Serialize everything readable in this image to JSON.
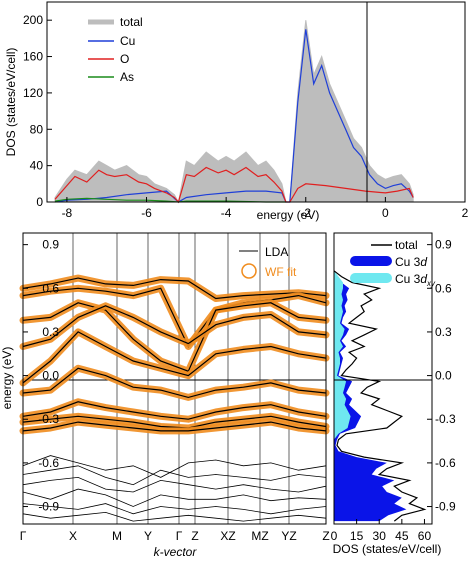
{
  "chart_data": [
    {
      "type": "area",
      "panel": "total DOS",
      "xlabel": "energy (eV)",
      "ylabel": "DOS (states/eV/cell)",
      "xlim": [
        -8.5,
        2
      ],
      "ylim": [
        0,
        220
      ],
      "x_ticks": [
        "-8",
        "-6",
        "-4",
        "-2",
        "0",
        "2"
      ],
      "y_ticks": [
        "0",
        "40",
        "80",
        "120",
        "160",
        "200"
      ],
      "fermi_level": 0,
      "legend_placement": "top-left",
      "series": [
        {
          "name": "total",
          "color": "#bdbdbd",
          "x": [
            -8.3,
            -8.0,
            -7.8,
            -7.5,
            -7.2,
            -7.0,
            -6.8,
            -6.5,
            -6.2,
            -6.0,
            -5.8,
            -5.5,
            -5.3,
            -5.2,
            -5.0,
            -4.8,
            -4.5,
            -4.2,
            -4.0,
            -3.8,
            -3.5,
            -3.2,
            -3.0,
            -2.8,
            -2.6,
            -2.5,
            -2.4,
            -2.2,
            -2.0,
            -1.8,
            -1.6,
            -1.4,
            -1.2,
            -1.0,
            -0.8,
            -0.6,
            -0.4,
            -0.2,
            0.0,
            0.2,
            0.4,
            0.6,
            0.7
          ],
          "y": [
            5,
            25,
            35,
            30,
            45,
            40,
            35,
            40,
            30,
            28,
            20,
            15,
            8,
            0,
            45,
            40,
            55,
            45,
            50,
            45,
            55,
            40,
            45,
            35,
            20,
            0,
            0,
            120,
            200,
            140,
            160,
            130,
            110,
            90,
            70,
            60,
            40,
            30,
            25,
            28,
            30,
            20,
            8
          ]
        },
        {
          "name": "Cu",
          "color": "#1f3fd8",
          "x": [
            -8.3,
            -8.0,
            -7.5,
            -7.0,
            -6.5,
            -6.0,
            -5.5,
            -5.2,
            -5.0,
            -4.5,
            -4.0,
            -3.5,
            -3.0,
            -2.6,
            -2.5,
            -2.4,
            -2.2,
            -2.0,
            -1.8,
            -1.6,
            -1.4,
            -1.2,
            -1.0,
            -0.8,
            -0.6,
            -0.4,
            -0.2,
            0.0,
            0.2,
            0.4,
            0.6,
            0.7
          ],
          "y": [
            0,
            2,
            3,
            5,
            8,
            10,
            12,
            0,
            5,
            8,
            10,
            12,
            12,
            10,
            0,
            0,
            110,
            190,
            130,
            150,
            120,
            100,
            80,
            60,
            50,
            30,
            20,
            15,
            18,
            20,
            12,
            5
          ]
        },
        {
          "name": "O",
          "color": "#e02020",
          "x": [
            -8.3,
            -8.0,
            -7.8,
            -7.5,
            -7.2,
            -7.0,
            -6.8,
            -6.5,
            -6.2,
            -6.0,
            -5.8,
            -5.5,
            -5.3,
            -5.2,
            -5.0,
            -4.8,
            -4.5,
            -4.2,
            -4.0,
            -3.8,
            -3.5,
            -3.2,
            -3.0,
            -2.8,
            -2.6,
            -2.5,
            -2.4,
            -2.2,
            -2.0,
            -1.5,
            -1.0,
            -0.5,
            0.0,
            0.3,
            0.6,
            0.7
          ],
          "y": [
            3,
            18,
            28,
            22,
            35,
            30,
            28,
            30,
            22,
            20,
            15,
            10,
            5,
            0,
            30,
            28,
            38,
            32,
            35,
            30,
            38,
            28,
            30,
            22,
            12,
            0,
            0,
            15,
            20,
            18,
            15,
            12,
            10,
            12,
            15,
            5
          ]
        },
        {
          "name": "As",
          "color": "#1a8c1a",
          "x": [
            -8.3,
            -8.0,
            -7.5,
            -7.0,
            -6.5,
            -6.0,
            -5.5,
            -5.2,
            -5.0,
            -4.0,
            -3.0,
            -2.5
          ],
          "y": [
            1,
            3,
            4,
            3,
            2,
            2,
            1,
            0,
            1,
            1,
            0,
            0
          ]
        }
      ]
    },
    {
      "type": "line",
      "panel": "band structure",
      "xlabel": "k-vector",
      "ylabel": "energy (eV)",
      "ylim": [
        -1.02,
        0.98
      ],
      "k_labels": [
        "Γ",
        "X",
        "M",
        "Y",
        "Γ",
        "Z",
        "XZ",
        "MZ",
        "YZ",
        "Z"
      ],
      "y_ticks": [
        "0.9",
        "0.6",
        "0.3",
        "0.0",
        "-0.3",
        "-0.6",
        "-0.9"
      ],
      "fermi_level": 0,
      "legend_placement": "top-right",
      "series": [
        {
          "name": "LDA",
          "color": "#000000",
          "style": "line"
        },
        {
          "name": "WF fit",
          "color": "#f08c1e",
          "style": "open circles"
        }
      ],
      "bands": [
        [
          0.6,
          0.63,
          0.67,
          0.63,
          0.62,
          0.66,
          0.65,
          0.53,
          0.55,
          0.56,
          0.57,
          0.55
        ],
        [
          0.55,
          0.58,
          0.6,
          0.58,
          0.55,
          0.6,
          0.2,
          0.45,
          0.5,
          0.52,
          0.55,
          0.5
        ],
        [
          0.38,
          0.4,
          0.5,
          0.45,
          0.25,
          0.1,
          0.03,
          0.45,
          0.48,
          0.5,
          0.4,
          0.38
        ],
        [
          0.2,
          0.25,
          0.4,
          0.48,
          0.4,
          0.3,
          0.22,
          0.35,
          0.4,
          0.42,
          0.3,
          0.28
        ],
        [
          -0.05,
          0.1,
          0.3,
          0.2,
          0.1,
          0.05,
          0.0,
          0.15,
          0.18,
          0.2,
          0.15,
          0.12
        ],
        [
          -0.12,
          -0.1,
          0.05,
          0.0,
          -0.08,
          -0.1,
          -0.15,
          -0.1,
          -0.08,
          -0.05,
          -0.1,
          -0.12
        ],
        [
          -0.28,
          -0.25,
          -0.18,
          -0.22,
          -0.25,
          -0.28,
          -0.3,
          -0.25,
          -0.22,
          -0.2,
          -0.25,
          -0.28
        ],
        [
          -0.32,
          -0.3,
          -0.28,
          -0.3,
          -0.32,
          -0.35,
          -0.36,
          -0.32,
          -0.3,
          -0.28,
          -0.32,
          -0.35
        ],
        [
          -0.38,
          -0.36,
          -0.32,
          -0.34,
          -0.36,
          -0.38,
          -0.38,
          -0.36,
          -0.34,
          -0.32,
          -0.36,
          -0.38
        ]
      ],
      "lower_bands": [
        [
          -0.62,
          -0.55,
          -0.6,
          -0.65,
          -0.62,
          -0.7,
          -0.6,
          -0.58,
          -0.62,
          -0.6,
          -0.65,
          -0.62
        ],
        [
          -0.68,
          -0.65,
          -0.62,
          -0.7,
          -0.75,
          -0.65,
          -0.7,
          -0.68,
          -0.7,
          -0.72,
          -0.68,
          -0.7
        ],
        [
          -0.75,
          -0.72,
          -0.7,
          -0.78,
          -0.8,
          -0.72,
          -0.75,
          -0.78,
          -0.75,
          -0.78,
          -0.8,
          -0.76
        ],
        [
          -0.8,
          -0.85,
          -0.78,
          -0.82,
          -0.9,
          -0.82,
          -0.85,
          -0.85,
          -0.82,
          -0.86,
          -0.84,
          -0.85
        ],
        [
          -0.88,
          -0.9,
          -0.92,
          -0.88,
          -0.95,
          -0.9,
          -0.92,
          -0.9,
          -0.92,
          -0.95,
          -0.92,
          -0.9
        ],
        [
          -0.95,
          -0.98,
          -0.96,
          -0.94,
          -1.0,
          -0.98,
          -0.96,
          -0.98,
          -1.0,
          -0.98,
          -0.96,
          -0.98
        ]
      ]
    },
    {
      "type": "area",
      "panel": "projected DOS",
      "xlabel": "DOS (states/eV/cell)",
      "xlim": [
        0,
        65
      ],
      "ylim": [
        -1.02,
        0.98
      ],
      "x_ticks": [
        "0",
        "15",
        "30",
        "45",
        "60"
      ],
      "y_ticks": [
        "0.9",
        "0.6",
        "0.3",
        "0.0",
        "-0.3",
        "-0.6",
        "-0.9"
      ],
      "legend_placement": "top-right",
      "series": [
        {
          "name": "total",
          "color": "#000000",
          "style": "line",
          "e": [
            0.72,
            0.68,
            0.64,
            0.6,
            0.56,
            0.52,
            0.48,
            0.44,
            0.4,
            0.36,
            0.32,
            0.28,
            0.24,
            0.2,
            0.16,
            0.12,
            0.08,
            0.04,
            0.0,
            -0.04,
            -0.08,
            -0.12,
            -0.16,
            -0.2,
            -0.24,
            -0.28,
            -0.32,
            -0.36,
            -0.4,
            -0.44,
            -0.48,
            -0.52,
            -0.56,
            -0.6,
            -0.64,
            -0.68,
            -0.72,
            -0.76,
            -0.8,
            -0.84,
            -0.88,
            -0.92,
            -0.96,
            -1.0
          ],
          "v": [
            0,
            5,
            12,
            30,
            20,
            25,
            18,
            20,
            15,
            10,
            28,
            20,
            12,
            20,
            10,
            15,
            12,
            8,
            5,
            30,
            22,
            18,
            30,
            25,
            35,
            45,
            40,
            35,
            8,
            3,
            2,
            5,
            20,
            45,
            35,
            30,
            50,
            40,
            45,
            55,
            50,
            60,
            45,
            40
          ]
        },
        {
          "name": "Cu 3d",
          "color": "#0a14e8",
          "style": "filled",
          "e": [
            0.72,
            0.68,
            0.64,
            0.6,
            0.56,
            0.52,
            0.48,
            0.44,
            0.4,
            0.36,
            0.32,
            0.28,
            0.24,
            0.2,
            0.16,
            0.12,
            0.08,
            0.04,
            0.0,
            -0.04,
            -0.08,
            -0.12,
            -0.16,
            -0.2,
            -0.24,
            -0.28,
            -0.32,
            -0.36,
            -0.4,
            -0.44,
            -0.48,
            -0.52,
            -0.56,
            -0.6,
            -0.64,
            -0.68,
            -0.72,
            -0.76,
            -0.8,
            -0.84,
            -0.88,
            -0.92,
            -0.96,
            -1.0
          ],
          "v": [
            0,
            2,
            5,
            10,
            8,
            9,
            7,
            8,
            6,
            5,
            10,
            8,
            5,
            8,
            4,
            6,
            5,
            4,
            3,
            12,
            10,
            8,
            12,
            10,
            14,
            18,
            16,
            14,
            4,
            2,
            1,
            3,
            15,
            35,
            28,
            25,
            40,
            32,
            35,
            45,
            40,
            48,
            36,
            30
          ]
        },
        {
          "name": "Cu 3dxy",
          "color": "#6fe8f0",
          "style": "filled",
          "e": [
            0.72,
            0.68,
            0.64,
            0.6,
            0.56,
            0.52,
            0.48,
            0.44,
            0.4,
            0.36,
            0.32,
            0.28,
            0.24,
            0.2,
            0.16,
            0.12,
            0.08,
            0.04,
            0.0,
            -0.04,
            -0.08,
            -0.12,
            -0.16,
            -0.2,
            -0.24,
            -0.28,
            -0.32,
            -0.36,
            -0.4,
            -0.44
          ],
          "v": [
            0,
            3,
            6,
            6,
            5,
            6,
            5,
            6,
            5,
            4,
            7,
            6,
            4,
            6,
            3,
            4,
            4,
            3,
            2,
            8,
            7,
            6,
            8,
            7,
            9,
            11,
            10,
            9,
            3,
            0
          ]
        }
      ]
    }
  ]
}
